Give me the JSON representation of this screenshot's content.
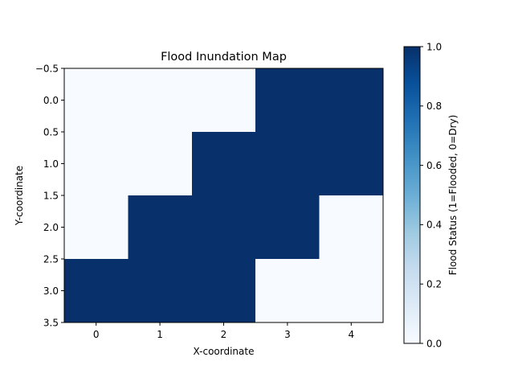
{
  "chart_data": {
    "type": "heatmap",
    "title": "Flood Inundation Map",
    "xlabel": "X-coordinate",
    "ylabel": "Y-coordinate",
    "x_ticks": [
      "0",
      "1",
      "2",
      "3",
      "4"
    ],
    "y_ticks": [
      "−0.5",
      "0.0",
      "0.5",
      "1.0",
      "1.5",
      "2.0",
      "2.5",
      "3.0",
      "3.5"
    ],
    "xlim": [
      -0.5,
      4.5
    ],
    "ylim": [
      3.5,
      -0.5
    ],
    "grid": false,
    "values": [
      [
        0,
        0,
        0,
        1,
        1
      ],
      [
        0,
        0,
        1,
        1,
        1
      ],
      [
        0,
        1,
        1,
        1,
        0
      ],
      [
        1,
        1,
        1,
        0,
        0
      ]
    ],
    "colormap": "Blues",
    "color_low": "#f7fbff",
    "color_high": "#08306b",
    "colorbar": {
      "label": "Flood Status (1=Flooded, 0=Dry)",
      "range": [
        0.0,
        1.0
      ],
      "ticks": [
        "0.0",
        "0.2",
        "0.4",
        "0.6",
        "0.8",
        "1.0"
      ]
    }
  }
}
